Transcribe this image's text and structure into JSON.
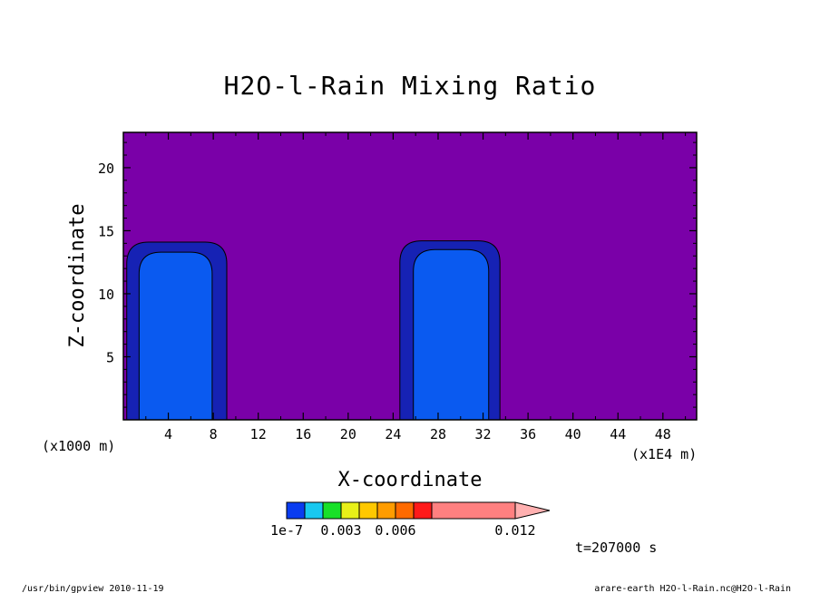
{
  "chart_data": {
    "type": "heatmap",
    "title": "H2O-l-Rain Mixing Ratio",
    "xlabel": "X-coordinate",
    "ylabel": "Z-coordinate",
    "x_ticks": [
      4,
      8,
      12,
      16,
      20,
      24,
      28,
      32,
      36,
      40,
      44,
      48
    ],
    "y_ticks": [
      5,
      10,
      15,
      20
    ],
    "xlim": [
      0,
      51
    ],
    "ylim": [
      0,
      22.8
    ],
    "x_scale_left": "(x1000 m)",
    "x_scale_right": "(x1E4 m)",
    "colorbar": {
      "labels": [
        "1e-7",
        "0.003",
        "0.006",
        "0.012"
      ],
      "label_levels": [
        0,
        3,
        6,
        11
      ],
      "colors": [
        "#0a3cf0",
        "#18c8f0",
        "#18e028",
        "#e8f018",
        "#ffc800",
        "#ff9c00",
        "#ff6a00",
        "#ff1a1a",
        "#ff8080",
        "#ffb0b0"
      ]
    },
    "background_color": "#7a00a8",
    "level_colors": [
      "#1622b4",
      "#0a5af0"
    ],
    "cells": [
      {
        "outer": {
          "x": [
            0.3,
            9.2
          ],
          "z": [
            0,
            14.1
          ]
        },
        "inner": {
          "x": [
            1.4,
            7.9
          ],
          "z": [
            0,
            13.3
          ]
        }
      },
      {
        "outer": {
          "x": [
            24.6,
            33.5
          ],
          "z": [
            0,
            14.2
          ]
        },
        "inner": {
          "x": [
            25.8,
            32.5
          ],
          "z": [
            0,
            13.5
          ]
        }
      }
    ],
    "time_label": "t=207000 s"
  },
  "footer": {
    "left": "/usr/bin/gpview  2010-11-19",
    "right": "arare-earth_H2O-l-Rain.nc@H2O-l-Rain"
  }
}
